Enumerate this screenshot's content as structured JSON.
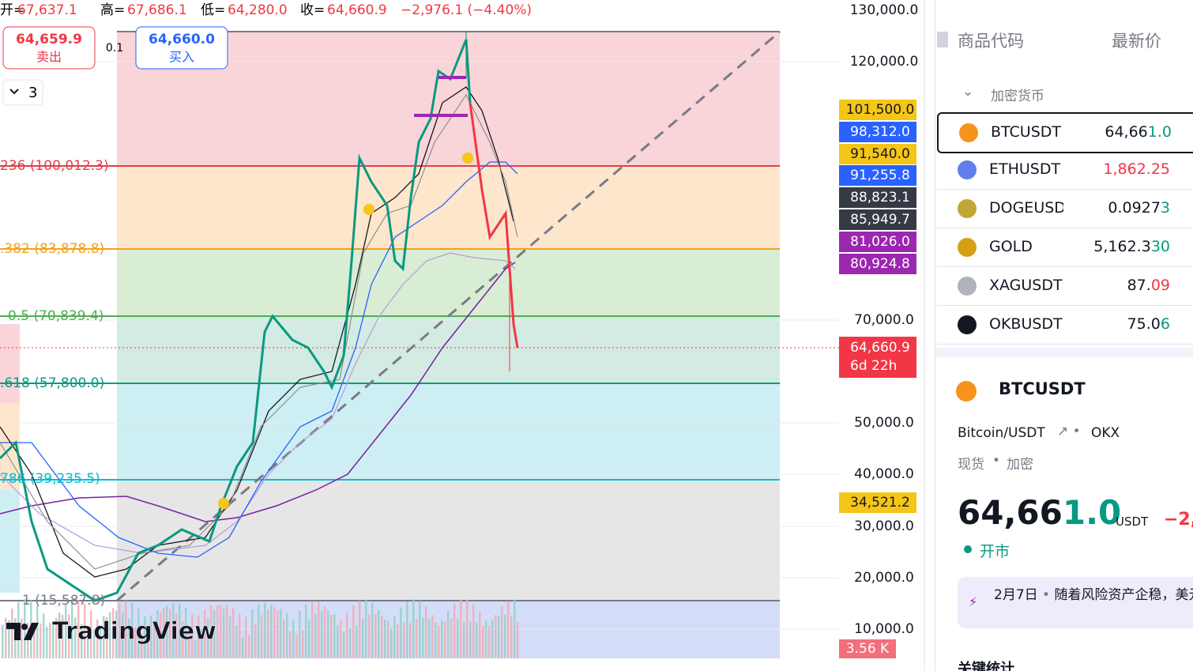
{
  "header": {
    "ohlc": [
      {
        "label": "开=",
        "value": "67,637.1"
      },
      {
        "label": "高=",
        "value": "67,686.1"
      },
      {
        "label": "低=",
        "value": "64,280.0"
      },
      {
        "label": "收=",
        "value": "64,660.9"
      }
    ],
    "change": "−2,976.1 (−4.40%)"
  },
  "order": {
    "sell_price": "64,659.9",
    "sell": "卖出",
    "spread": "0.1",
    "buy_price": "64,660.0",
    "buy": "买入"
  },
  "interval": "3",
  "fib_levels": [
    "236 (100,012.3)",
    ".382 (83,878.8)",
    "0.5 (70,839.4)",
    ".618 (57,800.0)",
    "786 (39,235.5)",
    "1 (15,587.8)"
  ],
  "price_axis": [
    "130,000.0",
    "120,000.0",
    "70,000.0",
    "50,000.0",
    "40,000.0",
    "30,000.0",
    "20,000.0",
    "10,000.0"
  ],
  "badges": [
    "101,500.0",
    "98,312.0",
    "91,540.0",
    "91,255.8",
    "88,823.1",
    "85,949.7",
    "81,026.0",
    "80,924.8",
    "34,521.2"
  ],
  "last_price": {
    "price": "64,660.9",
    "countdown": "6d 22h"
  },
  "volume_badge": "3.56 K",
  "logo": "TradingView",
  "watchlist": {
    "columns": [
      "商品代码",
      "最新价"
    ],
    "group": "加密货币",
    "rows": [
      {
        "symbol": "BTCUSDT",
        "main": "64,66",
        "tail": "1.0"
      },
      {
        "symbol": "ETHUSDT",
        "main": "1,862.25",
        "tail": ""
      },
      {
        "symbol": "DOGEUSDT",
        "main": "0.0927",
        "tail": "3"
      },
      {
        "symbol": "GOLD",
        "main": "5,162.3",
        "tail": "30"
      },
      {
        "symbol": "XAGUSDT",
        "main": "87.",
        "tail": "09"
      },
      {
        "symbol": "OKBUSDT",
        "main": "75.0",
        "tail": "6"
      }
    ]
  },
  "details": {
    "symbol": "BTCUSDT",
    "pair": "Bitcoin/USDT",
    "exchange": "OKX",
    "market": "现货",
    "category": "加密",
    "price_main": "64,66",
    "price_tail": "1.0",
    "currency": "USDT",
    "change": "−2,",
    "status": "开市",
    "news_date": "2月7日",
    "news_text": "随着风险资产企稳，美元上方",
    "section": "关键统计"
  }
}
